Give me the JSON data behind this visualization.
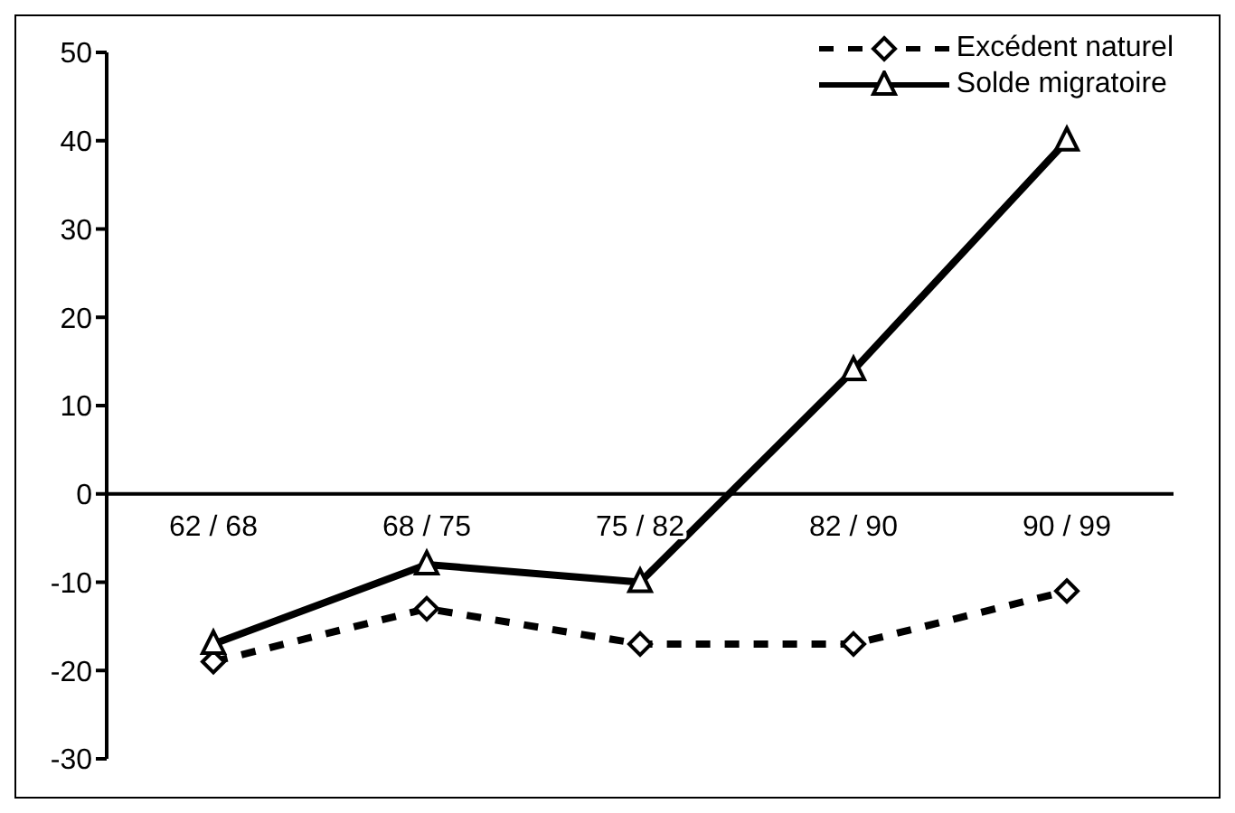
{
  "chart_data": {
    "type": "line",
    "categories": [
      "62 / 68",
      "68 / 75",
      "75 / 82",
      "82 / 90",
      "90 / 99"
    ],
    "series": [
      {
        "name": "Excédent naturel",
        "color": "#000000",
        "values": [
          -19,
          -13,
          -17,
          -17,
          -11
        ],
        "marker": "diamond",
        "line_style": "dashed"
      },
      {
        "name": "Solde migratoire",
        "color": "#000000",
        "values": [
          -17,
          -8,
          -10,
          14,
          40
        ],
        "marker": "triangle",
        "line_style": "solid"
      }
    ],
    "ylim": [
      -30,
      50
    ],
    "yticks": [
      -30,
      -20,
      -10,
      0,
      10,
      20,
      30,
      40,
      50
    ],
    "grid": false,
    "legend": "top right"
  }
}
